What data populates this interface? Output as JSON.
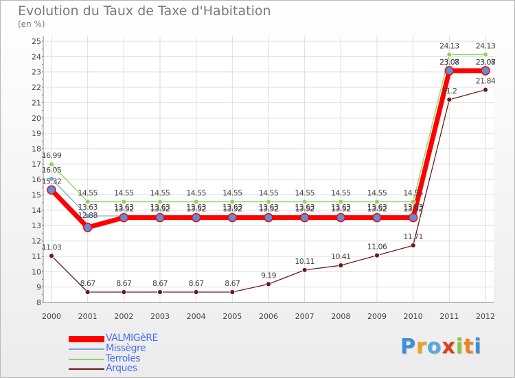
{
  "chart_data": {
    "type": "line",
    "title": "Evolution du Taux de Taxe d'Habitation",
    "subtitle": "(en %)",
    "xlabel": "",
    "ylabel": "",
    "ylim": [
      8,
      25
    ],
    "y_ticks": [
      8,
      9,
      10,
      11,
      12,
      13,
      14,
      15,
      16,
      17,
      18,
      19,
      20,
      21,
      22,
      23,
      24,
      25
    ],
    "x": [
      "2000",
      "2001",
      "2002",
      "2003",
      "2004",
      "2005",
      "2006",
      "2007",
      "2008",
      "2009",
      "2010",
      "2011",
      "2012"
    ],
    "grid": true,
    "legend_position": "bottom-left",
    "series": [
      {
        "name": "Terroles",
        "color": "#8fd45a",
        "values": [
          16.99,
          14.55,
          14.55,
          14.55,
          14.55,
          14.55,
          14.55,
          14.55,
          14.55,
          14.55,
          14.55,
          24.13,
          24.13
        ],
        "labels": [
          "16.99",
          "14.55",
          "14.55",
          "14.55",
          "14.55",
          "14.55",
          "14.55",
          "14.55",
          "14.55",
          "14.55",
          "14.55",
          "24.13",
          "24.13"
        ]
      },
      {
        "name": "Missègre",
        "color": "#7aa6d8",
        "values": [
          16.05,
          13.63,
          13.63,
          13.63,
          13.63,
          13.63,
          13.63,
          13.63,
          13.63,
          13.63,
          13.63,
          23.07,
          23.07
        ],
        "labels": [
          "16.05",
          "13.63",
          "13.63",
          "13.63",
          "13.63",
          "13.63",
          "13.63",
          "13.63",
          "13.63",
          "13.63",
          "13.63",
          "23.07",
          "23.07"
        ]
      },
      {
        "name": "VALMIGèRE",
        "color": "#ff0000",
        "values": [
          15.32,
          12.88,
          13.52,
          13.52,
          13.52,
          13.52,
          13.52,
          13.52,
          13.52,
          13.52,
          13.52,
          23.08,
          23.08
        ],
        "labels": [
          "15.32",
          "12.88",
          "13.52",
          "13.52",
          "13.52",
          "13.52",
          "13.52",
          "13.52",
          "13.52",
          "13.52",
          "13.52",
          "23.08",
          "23.08"
        ]
      },
      {
        "name": "Arques",
        "color": "#6b1a1a",
        "values": [
          11.03,
          8.67,
          8.67,
          8.67,
          8.67,
          8.67,
          9.19,
          10.11,
          10.41,
          11.06,
          11.71,
          21.2,
          21.84
        ],
        "labels": [
          "11.03",
          "8.67",
          "8.67",
          "8.67",
          "8.67",
          "8.67",
          "9.19",
          "10.11",
          "10.41",
          "11.06",
          "11.71",
          "21.2",
          "21.84"
        ]
      }
    ]
  },
  "legend": {
    "items": [
      {
        "label": "VALMIGèRE",
        "color": "#ff0000"
      },
      {
        "label": "Missègre",
        "color": "#7aa6d8"
      },
      {
        "label": "Terroles",
        "color": "#8fd45a"
      },
      {
        "label": "Arques",
        "color": "#6b1a1a"
      }
    ]
  },
  "logo": {
    "letters": [
      "P",
      "r",
      "o",
      "x",
      "i",
      "t",
      "i"
    ],
    "colors": [
      "#3d8fd6",
      "#f0a020",
      "#5aa8e0",
      "#e03c1c",
      "#8cc63f",
      "#f08020",
      "#3d8fd6"
    ]
  }
}
